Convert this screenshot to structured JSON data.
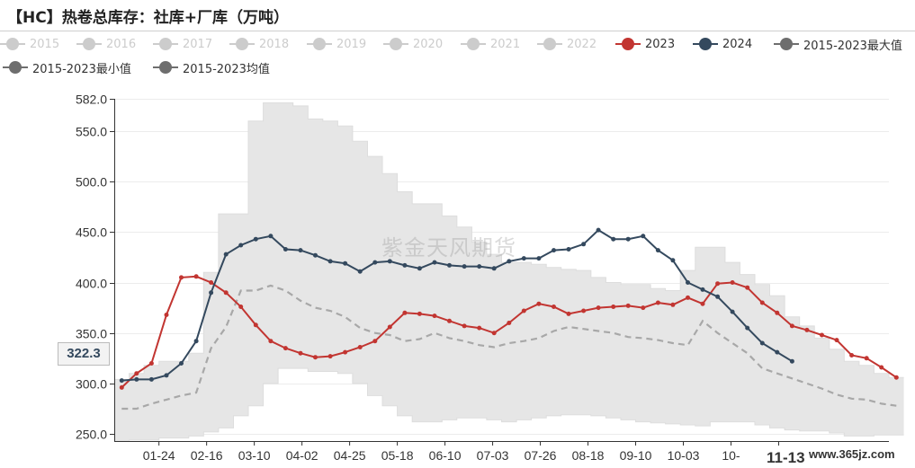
{
  "title": "【HC】热卷总库存：社库+厂库（万吨）",
  "watermark": "紫金天风期货",
  "site_label": "www.365jz.com",
  "pointer": {
    "y_value": "322.3",
    "x_label": "11-13"
  },
  "colors": {
    "y2023": "#c23531",
    "y2024": "#34495e",
    "range": "#e6e6e6",
    "mean": "#a8a8a8",
    "legend_inactive": "#cccccc",
    "legend_active_text": "#333333"
  },
  "legend": [
    {
      "name": "2015",
      "active": false,
      "symbol": "dot"
    },
    {
      "name": "2016",
      "active": false,
      "symbol": "dot"
    },
    {
      "name": "2017",
      "active": false,
      "symbol": "dot"
    },
    {
      "name": "2018",
      "active": false,
      "symbol": "dot"
    },
    {
      "name": "2019",
      "active": false,
      "symbol": "dot"
    },
    {
      "name": "2020",
      "active": false,
      "symbol": "dot"
    },
    {
      "name": "2021",
      "active": false,
      "symbol": "dot"
    },
    {
      "name": "2022",
      "active": false,
      "symbol": "dot"
    },
    {
      "name": "2023",
      "active": true,
      "symbol": "dot",
      "color": "#c23531"
    },
    {
      "name": "2024",
      "active": true,
      "symbol": "dot",
      "color": "#34495e"
    },
    {
      "name": "2015-2023最大值",
      "active": true,
      "symbol": "dot",
      "color": "#6e6e6e"
    },
    {
      "name": "2015-2023最小值",
      "active": true,
      "symbol": "dot",
      "color": "#6e6e6e"
    },
    {
      "name": "2015-2023均值",
      "active": true,
      "symbol": "dot",
      "color": "#6e6e6e"
    }
  ],
  "chart_data": {
    "type": "line",
    "title": "【HC】热卷总库存：社库+厂库（万吨）",
    "xlabel": "",
    "ylabel": "",
    "ylim": [
      243,
      582
    ],
    "yticks": [
      "582.0",
      "550.0",
      "500.0",
      "450.0",
      "400.0",
      "350.0",
      "300.0",
      "250.0"
    ],
    "ytick_values": [
      582,
      550,
      500,
      450,
      400,
      350,
      300,
      250
    ],
    "grid": true,
    "weeks": 52,
    "xticks": [
      {
        "label": "01-24",
        "week": 3
      },
      {
        "label": "02-16",
        "week": 6.2
      },
      {
        "label": "03-10",
        "week": 9.4
      },
      {
        "label": "04-02",
        "week": 12.6
      },
      {
        "label": "04-25",
        "week": 15.8
      },
      {
        "label": "05-18",
        "week": 19
      },
      {
        "label": "06-10",
        "week": 22.2
      },
      {
        "label": "07-03",
        "week": 25.4
      },
      {
        "label": "07-26",
        "week": 28.6
      },
      {
        "label": "08-18",
        "week": 31.8
      },
      {
        "label": "09-10",
        "week": 35
      },
      {
        "label": "10-03",
        "week": 38.2
      },
      {
        "label": "10-",
        "week": 41.4
      },
      {
        "label": "11-13",
        "week": 44.6
      }
    ],
    "series": [
      {
        "name": "2015-2023最大值",
        "values": [
          304,
          310,
          318,
          322,
          322,
          330,
          410,
          468,
          468,
          560,
          578,
          578,
          575,
          562,
          560,
          555,
          540,
          525,
          508,
          490,
          478,
          478,
          466,
          455,
          440,
          428,
          420,
          420,
          418,
          415,
          413,
          412,
          405,
          400,
          398,
          398,
          394,
          392,
          412,
          435,
          435,
          420,
          408,
          398,
          387,
          366,
          357,
          345,
          334,
          322,
          318,
          310,
          306
        ]
      },
      {
        "name": "2015-2023最小值",
        "values": [
          243,
          244,
          244,
          246,
          246,
          248,
          252,
          256,
          268,
          278,
          300,
          315,
          315,
          312,
          312,
          310,
          300,
          288,
          278,
          268,
          262,
          262,
          264,
          266,
          266,
          264,
          262,
          264,
          266,
          268,
          269,
          269,
          268,
          266,
          264,
          262,
          261,
          260,
          259,
          258,
          262,
          262,
          262,
          259,
          256,
          254,
          253,
          253,
          251,
          248,
          248,
          249,
          249
        ]
      },
      {
        "name": "2015-2023均值",
        "values": [
          275,
          275,
          280,
          284,
          288,
          291,
          335,
          356,
          392,
          392,
          397,
          392,
          382,
          375,
          372,
          366,
          355,
          350,
          348,
          342,
          344,
          350,
          345,
          342,
          338,
          336,
          340,
          342,
          345,
          352,
          356,
          354,
          352,
          350,
          346,
          345,
          343,
          340,
          338,
          362,
          350,
          340,
          330,
          315,
          310,
          305,
          300,
          295,
          289,
          285,
          284,
          280,
          278
        ]
      },
      {
        "name": "2023",
        "values": [
          296,
          310,
          320,
          368,
          405,
          406,
          400,
          390,
          376,
          358,
          342,
          335,
          330,
          326,
          327,
          331,
          336,
          342,
          356,
          370,
          369,
          367,
          362,
          357,
          355,
          350,
          360,
          372,
          379,
          376,
          369,
          372,
          375,
          376,
          377,
          375,
          380,
          378,
          385,
          379,
          399,
          400,
          395,
          380,
          370,
          357,
          353,
          348,
          343,
          328,
          325,
          316,
          306
        ]
      },
      {
        "name": "2024",
        "values": [
          303,
          304,
          304,
          308,
          320,
          342,
          390,
          428,
          437,
          443,
          446,
          433,
          432,
          427,
          421,
          419,
          411,
          420,
          421,
          417,
          414,
          420,
          417,
          416,
          416,
          414,
          421,
          424,
          424,
          432,
          433,
          438,
          452,
          443,
          443,
          446,
          432,
          422,
          400,
          393,
          386,
          371,
          355,
          340,
          331,
          322
        ]
      }
    ]
  }
}
